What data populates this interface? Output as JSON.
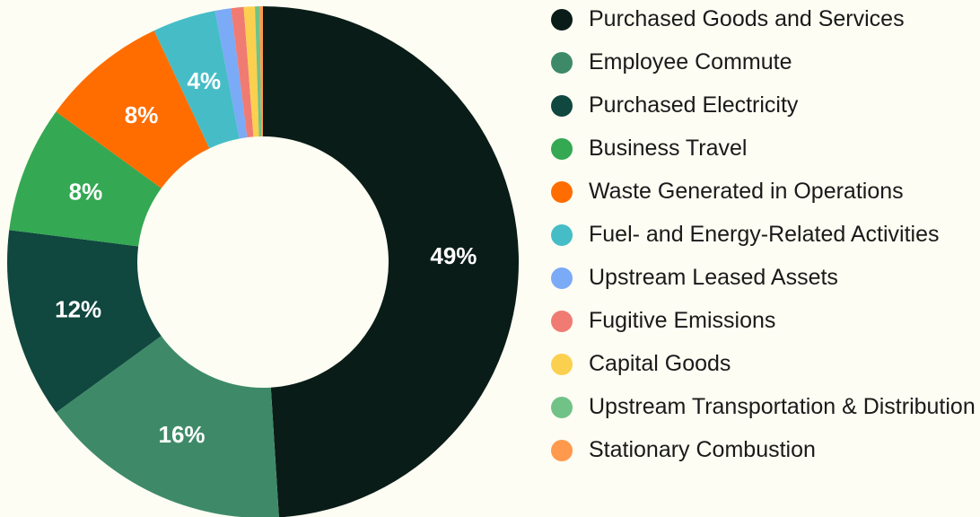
{
  "chart_data": {
    "type": "donut",
    "categories": [
      "Purchased Goods and Services",
      "Employee Commute",
      "Purchased Electricity",
      "Business Travel",
      "Waste Generated in Operations",
      "Fuel- and Energy-Related Activities",
      "Upstream Leased Assets",
      "Fugitive Emissions",
      "Capital Goods",
      "Upstream Transportation & Distribution",
      "Stationary Combustion"
    ],
    "values": [
      49,
      16,
      12,
      8,
      8,
      4,
      1,
      0.8,
      0.7,
      0.3,
      0.2
    ],
    "value_labels": [
      "49%",
      "16%",
      "12%",
      "8%",
      "8%",
      "4%",
      null,
      null,
      null,
      null,
      null
    ],
    "colors": [
      "#0a1c17",
      "#3e8a68",
      "#10473f",
      "#34a853",
      "#ff6d01",
      "#46bdc6",
      "#7baaf7",
      "#f07b72",
      "#fcd04f",
      "#71c287",
      "#ff994d"
    ],
    "legend": "right"
  }
}
